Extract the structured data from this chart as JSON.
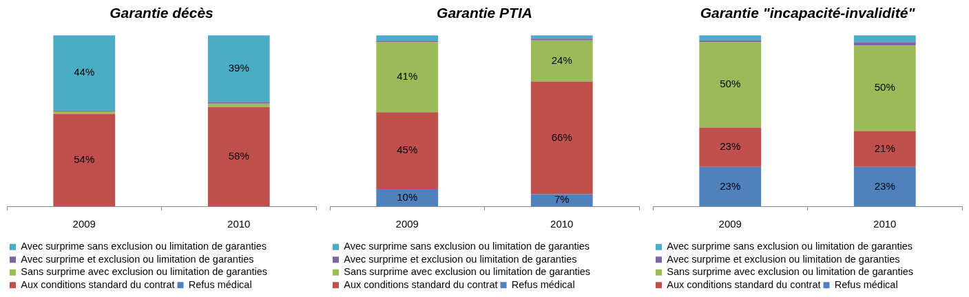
{
  "chart_data": [
    {
      "type": "bar",
      "stacked": true,
      "title": "Garantie décès",
      "categories": [
        "2009",
        "2010"
      ],
      "ylim": [
        0,
        100
      ],
      "grid": false,
      "legend": "bottom",
      "tick_labels": "x",
      "series": [
        {
          "name": "Refus médical",
          "color": "#4f81bd",
          "values": [
            0,
            0
          ],
          "value_labels": [
            null,
            null
          ]
        },
        {
          "name": "Aux conditions standard du contrat",
          "color": "#c0504d",
          "values": [
            54,
            58
          ],
          "value_labels": [
            "54%",
            "58%"
          ]
        },
        {
          "name": "Sans surprime avec exclusion ou limitation de garanties",
          "color": "#9bbb59",
          "values": [
            1.5,
            2
          ],
          "value_labels": [
            null,
            null
          ]
        },
        {
          "name": "Avec surprime et exclusion ou limitation de garanties",
          "color": "#8064a2",
          "values": [
            0.5,
            1
          ],
          "value_labels": [
            null,
            null
          ]
        },
        {
          "name": "Avec surprime sans exclusion ou limitation de garanties",
          "color": "#4bacc6",
          "values": [
            44,
            39
          ],
          "value_labels": [
            "44%",
            "39%"
          ]
        }
      ]
    },
    {
      "type": "bar",
      "stacked": true,
      "title": "Garantie PTIA",
      "categories": [
        "2009",
        "2010"
      ],
      "ylim": [
        0,
        100
      ],
      "grid": false,
      "legend": "bottom",
      "tick_labels": "x",
      "series": [
        {
          "name": "Refus médical",
          "color": "#4f81bd",
          "values": [
            10,
            7
          ],
          "value_labels": [
            "10%",
            "7%"
          ]
        },
        {
          "name": "Aux conditions standard du contrat",
          "color": "#c0504d",
          "values": [
            45,
            66
          ],
          "value_labels": [
            "45%",
            "66%"
          ]
        },
        {
          "name": "Sans surprime avec exclusion ou limitation de garanties",
          "color": "#9bbb59",
          "values": [
            41,
            24
          ],
          "value_labels": [
            "41%",
            "24%"
          ]
        },
        {
          "name": "Avec surprime et exclusion ou limitation de garanties",
          "color": "#8064a2",
          "values": [
            0.5,
            1
          ],
          "value_labels": [
            null,
            null
          ]
        },
        {
          "name": "Avec surprime sans exclusion ou limitation de garanties",
          "color": "#4bacc6",
          "values": [
            3.5,
            2
          ],
          "value_labels": [
            null,
            null
          ]
        }
      ]
    },
    {
      "type": "bar",
      "stacked": true,
      "title": "Garantie \"incapacité-invalidité\"",
      "categories": [
        "2009",
        "2010"
      ],
      "ylim": [
        0,
        100
      ],
      "grid": false,
      "legend": "bottom",
      "tick_labels": "x",
      "series": [
        {
          "name": "Refus médical",
          "color": "#4f81bd",
          "values": [
            23,
            23
          ],
          "value_labels": [
            "23%",
            "23%"
          ]
        },
        {
          "name": "Aux conditions standard du contrat",
          "color": "#c0504d",
          "values": [
            23,
            21
          ],
          "value_labels": [
            "23%",
            "21%"
          ]
        },
        {
          "name": "Sans surprime avec exclusion ou limitation de garanties",
          "color": "#9bbb59",
          "values": [
            50,
            50
          ],
          "value_labels": [
            "50%",
            "50%"
          ]
        },
        {
          "name": "Avec surprime et exclusion ou limitation de garanties",
          "color": "#8064a2",
          "values": [
            1,
            2
          ],
          "value_labels": [
            null,
            null
          ]
        },
        {
          "name": "Avec surprime sans exclusion ou limitation de garanties",
          "color": "#4bacc6",
          "values": [
            3,
            4
          ],
          "value_labels": [
            null,
            null
          ]
        }
      ]
    }
  ]
}
